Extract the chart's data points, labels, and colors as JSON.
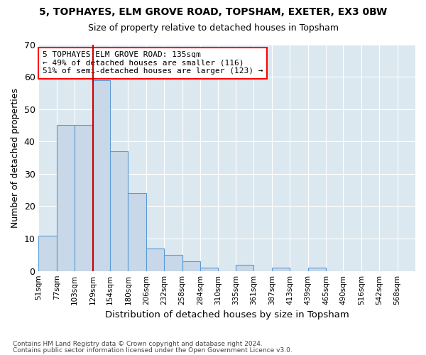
{
  "title_line1": "5, TOPHAYES, ELM GROVE ROAD, TOPSHAM, EXETER, EX3 0BW",
  "title_line2": "Size of property relative to detached houses in Topsham",
  "xlabel": "Distribution of detached houses by size in Topsham",
  "ylabel": "Number of detached properties",
  "bar_heights": [
    11,
    45,
    45,
    59,
    37,
    24,
    7,
    5,
    3,
    1,
    0,
    2,
    0,
    1,
    0,
    1,
    0,
    0,
    0,
    0
  ],
  "bin_edges": [
    51,
    77,
    103,
    129,
    154,
    180,
    206,
    232,
    258,
    284,
    310,
    335,
    361,
    387,
    413,
    439,
    465,
    490,
    516,
    542,
    568
  ],
  "tick_labels": [
    "51sqm",
    "77sqm",
    "103sqm",
    "129sqm",
    "154sqm",
    "180sqm",
    "206sqm",
    "232sqm",
    "258sqm",
    "284sqm",
    "310sqm",
    "335sqm",
    "361sqm",
    "387sqm",
    "413sqm",
    "439sqm",
    "465sqm",
    "490sqm",
    "516sqm",
    "542sqm",
    "568sqm"
  ],
  "bar_color": "#c8d8e8",
  "bar_edge_color": "#5b9bd5",
  "plot_bg_color": "#dce8f0",
  "fig_bg_color": "#ffffff",
  "grid_color": "#ffffff",
  "vline_x": 129,
  "vline_color": "#cc0000",
  "annotation_text": "5 TOPHAYES ELM GROVE ROAD: 135sqm\n← 49% of detached houses are smaller (116)\n51% of semi-detached houses are larger (123) →",
  "annotation_box_color": "white",
  "annotation_border_color": "red",
  "footnote1": "Contains HM Land Registry data © Crown copyright and database right 2024.",
  "footnote2": "Contains public sector information licensed under the Open Government Licence v3.0.",
  "ylim": [
    0,
    70
  ],
  "yticks": [
    0,
    10,
    20,
    30,
    40,
    50,
    60,
    70
  ]
}
